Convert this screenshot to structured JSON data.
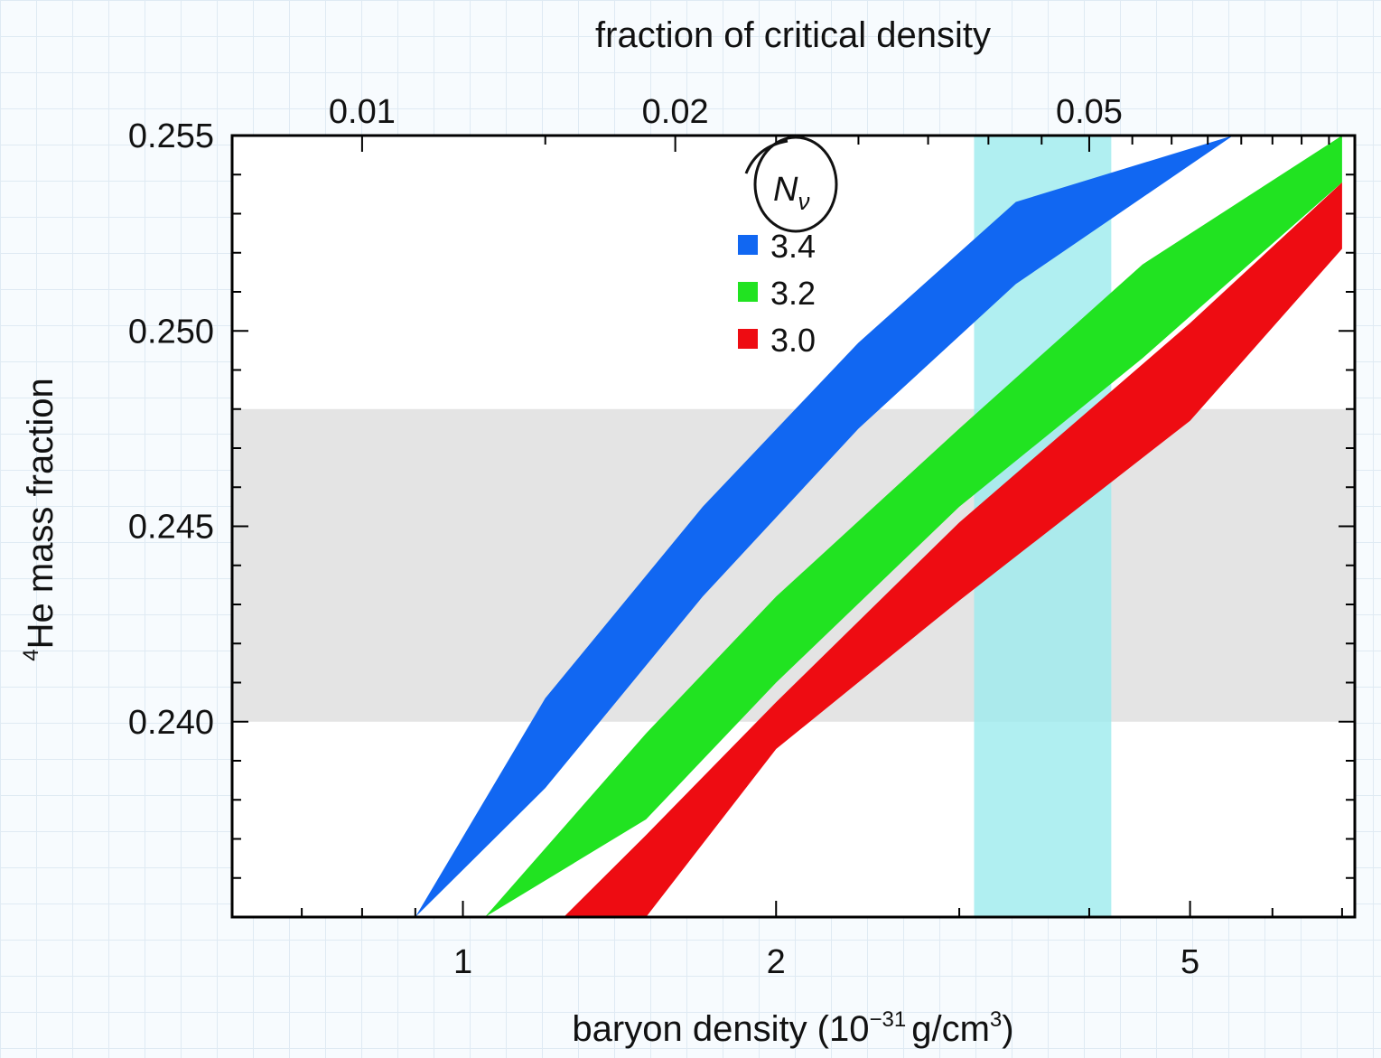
{
  "chart_data": {
    "type": "area",
    "xlabel": "baryon density (10",
    "xlabel_exp": "−31",
    "xlabel_mid": "g/cm",
    "xlabel_exp2": "3",
    "xlabel_end": ")",
    "x_scale": "log",
    "xlim": [
      0.6,
      7.2
    ],
    "x_ticks": [
      1,
      2,
      5
    ],
    "x_tick_labels": [
      "1",
      "2",
      "5"
    ],
    "top_xlabel": "fraction of critical density",
    "top_ticks": [
      {
        "x": 0.8,
        "label": "0.01"
      },
      {
        "x": 1.6,
        "label": "0.02"
      },
      {
        "x": 4.0,
        "label": "0.05"
      }
    ],
    "ylabel_sup": "4",
    "ylabel": "He mass fraction",
    "ylim": [
      0.235,
      0.255
    ],
    "y_ticks": [
      0.255,
      0.25,
      0.245,
      0.24
    ],
    "y_tick_labels": [
      "0.255",
      "0.250",
      "0.245",
      "0.240"
    ],
    "legend_title": "N",
    "legend_title_sub": "ν",
    "legend_position": "top-center",
    "series": [
      {
        "name": "3.4",
        "color": "#1167f2",
        "x": [
          0.9,
          1.2,
          1.7,
          2.4,
          3.4,
          5.5
        ],
        "upper": [
          0.235,
          0.2406,
          0.2455,
          0.2497,
          0.2533,
          0.255
        ],
        "lower": [
          0.235,
          0.2383,
          0.2432,
          0.2475,
          0.2512,
          0.255
        ]
      },
      {
        "name": "3.2",
        "color": "#21e321",
        "x": [
          1.05,
          1.5,
          2.0,
          3.0,
          4.5,
          7.0
        ],
        "upper": [
          0.235,
          0.2397,
          0.2432,
          0.2475,
          0.2517,
          0.255
        ],
        "lower": [
          0.235,
          0.2375,
          0.241,
          0.2455,
          0.2493,
          0.2538
        ]
      },
      {
        "name": "3.0",
        "color": "#ee0c12",
        "x": [
          1.25,
          1.5,
          2.0,
          3.0,
          5.0,
          7.0
        ],
        "upper": [
          0.235,
          0.2371,
          0.2405,
          0.2451,
          0.2502,
          0.2538
        ],
        "lower": [
          0.235,
          0.235,
          0.2393,
          0.2431,
          0.2477,
          0.2521
        ]
      }
    ],
    "shaded_regions": [
      {
        "orientation": "horizontal",
        "from": 0.24,
        "to": 0.248,
        "color": "#e4e4e4"
      },
      {
        "orientation": "vertical",
        "from": 3.1,
        "to": 4.2,
        "color": "#9cebee"
      }
    ],
    "grid": false
  }
}
